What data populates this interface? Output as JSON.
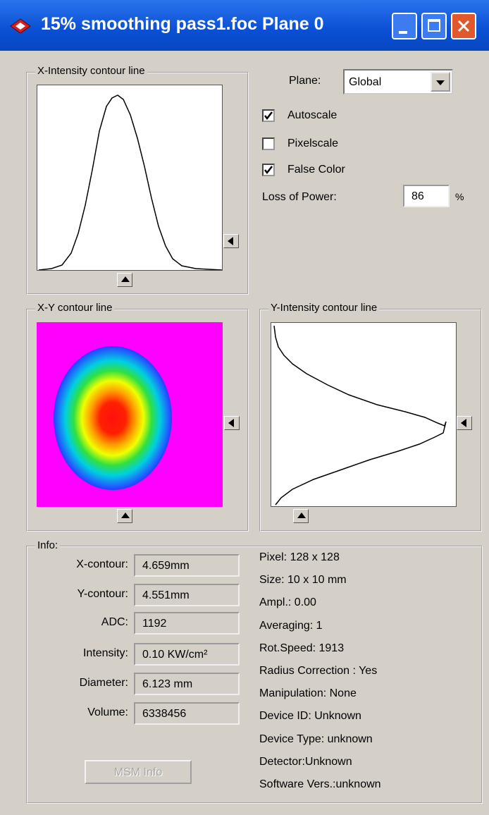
{
  "window": {
    "title": "15% smoothing pass1.foc Plane 0"
  },
  "groups": {
    "x_intensity": "X-Intensity contour line",
    "xy": "X-Y contour line",
    "y_intensity": "Y-Intensity contour line",
    "info": "Info:"
  },
  "plane": {
    "label": "Plane:",
    "value": "Global"
  },
  "checkboxes": [
    {
      "label": "Autoscale",
      "checked": true
    },
    {
      "label": "Pixelscale",
      "checked": false
    },
    {
      "label": "False Color",
      "checked": true
    }
  ],
  "loss_of_power": {
    "label": "Loss of Power:",
    "value": "86",
    "unit": "%"
  },
  "info": {
    "fields": [
      {
        "label": "X-contour:",
        "value": "4.659mm"
      },
      {
        "label": "Y-contour:",
        "value": "4.551mm"
      },
      {
        "label": "ADC:",
        "value": "1192"
      },
      {
        "label": "Intensity:",
        "value": "0.10 KW/cm²"
      },
      {
        "label": "Diameter:",
        "value": "6.123 mm"
      },
      {
        "label": "Volume:",
        "value": "6338456"
      }
    ],
    "button": "MSM Info",
    "stats": [
      "Pixel:  128 x 128",
      "Size:  10 x 10 mm",
      "Ampl.: 0.00",
      "Averaging: 1",
      "Rot.Speed:  1913",
      "Radius Correction : Yes",
      "Manipulation: None",
      "Device ID: Unknown",
      "Device Type: unknown",
      "Detector:Unknown",
      "Software Vers.:unknown"
    ]
  }
}
